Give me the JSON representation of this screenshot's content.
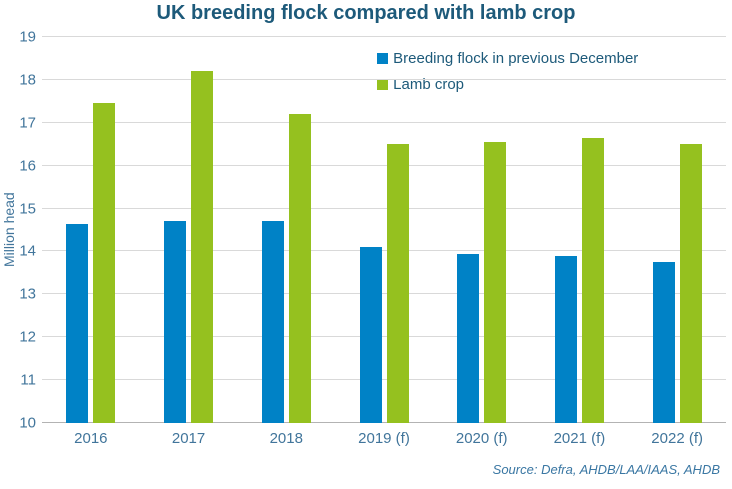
{
  "chart": {
    "title": "UK breeding flock compared with lamb crop",
    "source": "Source: Defra, AHDB/LAA/IAAS, AHDB"
  },
  "chart_data": {
    "type": "bar",
    "title": "UK breeding flock compared with lamb crop",
    "categories": [
      "2016",
      "2017",
      "2018",
      "2019 (f)",
      "2020 (f)",
      "2021 (f)",
      "2022 (f)"
    ],
    "series": [
      {
        "name": "Breeding flock in previous December",
        "color": "#0082c6",
        "values": [
          14.65,
          14.7,
          14.7,
          14.1,
          13.95,
          13.9,
          13.75
        ]
      },
      {
        "name": "Lamb crop",
        "color": "#95c11f",
        "values": [
          17.45,
          18.2,
          17.2,
          16.5,
          16.55,
          16.65,
          16.5
        ]
      }
    ],
    "xlabel": "",
    "ylabel": "Million head",
    "ylim": [
      10,
      19
    ],
    "ytick_step": 1,
    "grid": true,
    "legend_position": "inside-top-right",
    "source": "Source: Defra, AHDB/LAA/IAAS, AHDB"
  },
  "colors": {
    "title": "#1d5a7a",
    "axis": "#41759b",
    "grid": "#d9d9d9",
    "axisline": "#b3b3b3",
    "source": "#3a77a3",
    "series_blue": "#0082c6",
    "series_green": "#95c11f"
  }
}
